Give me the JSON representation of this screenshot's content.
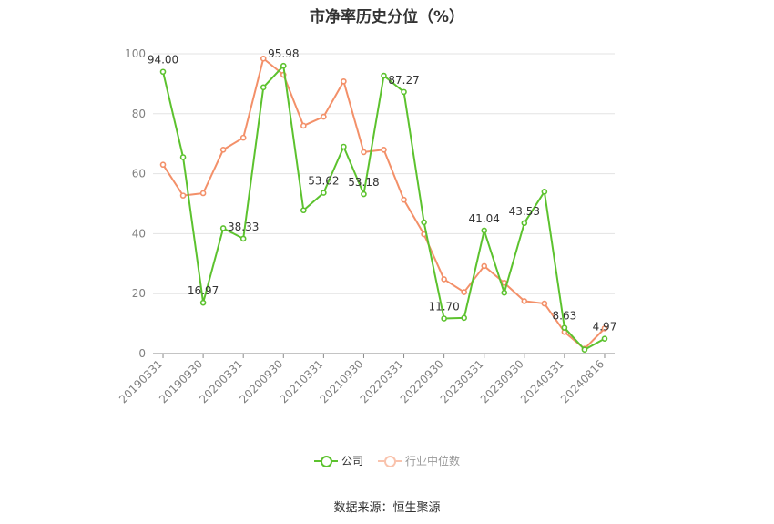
{
  "title": "市净率历史分位（%）",
  "source": "数据来源：恒生聚源",
  "chart_data": {
    "type": "line",
    "title": "市净率历史分位（%）",
    "xlabel": "",
    "ylabel": "",
    "ylim": [
      0,
      100
    ],
    "yticks": [
      0,
      20,
      40,
      60,
      80,
      100
    ],
    "grid": true,
    "legend_position": "bottom",
    "x_tick_labels": [
      "20190331",
      "20190930",
      "20200331",
      "20200930",
      "20210331",
      "20210930",
      "20220331",
      "20220930",
      "20230331",
      "20230930",
      "20240331",
      "20240816"
    ],
    "x_tick_positions": [
      0,
      2,
      4,
      6,
      8,
      10,
      12,
      14,
      16,
      18,
      20,
      22
    ],
    "n_points": 23,
    "series": [
      {
        "name": "公司",
        "color": "#5cc22e",
        "values": [
          94.0,
          65.5,
          16.97,
          41.8,
          38.33,
          88.8,
          95.98,
          47.8,
          53.62,
          69.0,
          53.18,
          92.7,
          87.27,
          43.8,
          11.7,
          11.9,
          41.04,
          20.3,
          43.53,
          54.0,
          8.63,
          1.3,
          4.97
        ],
        "labels": {
          "0": "94.00",
          "2": "16.97",
          "4": "38.33",
          "6": "95.98",
          "8": "53.62",
          "10": "53.18",
          "12": "87.27",
          "14": "11.70",
          "16": "41.04",
          "18": "43.53",
          "20": "8.63",
          "22": "4.97"
        }
      },
      {
        "name": "行业中位数",
        "color": "#f39069",
        "values": [
          63.0,
          52.7,
          53.5,
          68.0,
          72.0,
          98.4,
          93.0,
          76.0,
          79.0,
          90.8,
          67.2,
          68.0,
          51.3,
          39.8,
          24.8,
          20.5,
          29.2,
          23.6,
          17.5,
          16.7,
          7.2,
          1.6,
          8.4
        ]
      }
    ]
  }
}
